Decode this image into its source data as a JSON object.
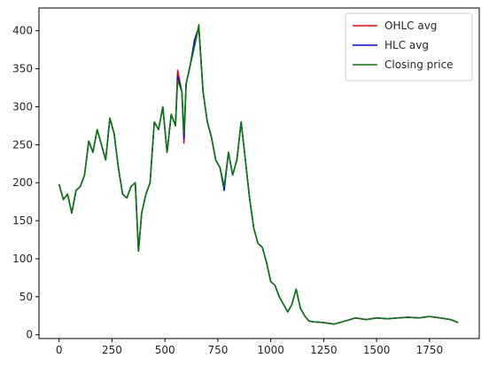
{
  "chart_data": {
    "type": "line",
    "title": "",
    "xlabel": "",
    "ylabel": "",
    "xlim": [
      -95,
      1985
    ],
    "ylim": [
      -5,
      430
    ],
    "xticks": [
      0,
      250,
      500,
      750,
      1000,
      1250,
      1500,
      1750
    ],
    "yticks": [
      0,
      50,
      100,
      150,
      200,
      250,
      300,
      350,
      400
    ],
    "grid": false,
    "legend": {
      "position": "top-right"
    },
    "series": [
      {
        "name": "OHLC avg",
        "color": "#ff0000",
        "x": [
          0,
          20,
          40,
          60,
          80,
          100,
          120,
          140,
          160,
          180,
          200,
          220,
          240,
          260,
          280,
          300,
          320,
          340,
          360,
          375,
          390,
          410,
          430,
          450,
          470,
          490,
          510,
          530,
          550,
          560,
          580,
          590,
          600,
          620,
          640,
          660,
          680,
          700,
          720,
          740,
          760,
          780,
          800,
          820,
          840,
          860,
          880,
          900,
          920,
          940,
          960,
          980,
          1000,
          1020,
          1040,
          1060,
          1080,
          1100,
          1120,
          1140,
          1160,
          1180,
          1200,
          1250,
          1300,
          1350,
          1400,
          1450,
          1500,
          1550,
          1600,
          1650,
          1700,
          1750,
          1800,
          1850,
          1885
        ],
        "y": [
          198,
          178,
          185,
          160,
          190,
          195,
          210,
          255,
          240,
          270,
          250,
          230,
          285,
          265,
          220,
          185,
          180,
          195,
          200,
          110,
          160,
          185,
          200,
          280,
          270,
          300,
          240,
          290,
          275,
          348,
          320,
          252,
          330,
          355,
          380,
          405,
          320,
          280,
          260,
          230,
          220,
          195,
          240,
          210,
          230,
          280,
          230,
          180,
          140,
          120,
          115,
          95,
          70,
          65,
          50,
          40,
          30,
          40,
          60,
          35,
          25,
          18,
          17,
          16,
          14,
          18,
          22,
          20,
          22,
          21,
          22,
          23,
          22,
          24,
          22,
          20,
          16
        ]
      },
      {
        "name": "HLC avg",
        "color": "#0000ff",
        "x": [
          0,
          20,
          40,
          60,
          80,
          100,
          120,
          140,
          160,
          180,
          200,
          220,
          240,
          260,
          280,
          300,
          320,
          340,
          360,
          375,
          390,
          410,
          430,
          450,
          470,
          490,
          510,
          530,
          550,
          560,
          580,
          590,
          600,
          620,
          640,
          660,
          680,
          700,
          720,
          740,
          760,
          780,
          800,
          820,
          840,
          860,
          880,
          900,
          920,
          940,
          960,
          980,
          1000,
          1020,
          1040,
          1060,
          1080,
          1100,
          1120,
          1140,
          1160,
          1180,
          1200,
          1250,
          1300,
          1350,
          1400,
          1450,
          1500,
          1550,
          1600,
          1650,
          1700,
          1750,
          1800,
          1850,
          1885
        ],
        "y": [
          198,
          178,
          185,
          160,
          190,
          195,
          210,
          255,
          240,
          270,
          250,
          230,
          285,
          265,
          220,
          185,
          180,
          195,
          200,
          110,
          160,
          185,
          200,
          280,
          270,
          300,
          240,
          290,
          275,
          340,
          320,
          258,
          330,
          355,
          388,
          405,
          320,
          280,
          260,
          230,
          220,
          190,
          240,
          210,
          230,
          280,
          230,
          180,
          140,
          120,
          115,
          95,
          70,
          65,
          50,
          40,
          30,
          40,
          60,
          35,
          25,
          18,
          17,
          16,
          14,
          18,
          22,
          20,
          22,
          21,
          22,
          23,
          22,
          24,
          22,
          20,
          16
        ]
      },
      {
        "name": "Closing price",
        "color": "#008000",
        "x": [
          0,
          20,
          40,
          60,
          80,
          100,
          120,
          140,
          160,
          180,
          200,
          220,
          240,
          260,
          280,
          300,
          320,
          340,
          360,
          375,
          390,
          410,
          430,
          450,
          470,
          490,
          510,
          530,
          550,
          560,
          580,
          590,
          600,
          620,
          640,
          660,
          680,
          700,
          720,
          740,
          760,
          780,
          800,
          820,
          840,
          860,
          880,
          900,
          920,
          940,
          960,
          980,
          1000,
          1020,
          1040,
          1060,
          1080,
          1100,
          1120,
          1140,
          1160,
          1180,
          1200,
          1250,
          1300,
          1350,
          1400,
          1450,
          1500,
          1550,
          1600,
          1650,
          1700,
          1750,
          1800,
          1850,
          1885
        ],
        "y": [
          198,
          178,
          185,
          160,
          190,
          195,
          210,
          255,
          240,
          270,
          250,
          230,
          285,
          265,
          220,
          185,
          180,
          195,
          200,
          110,
          160,
          185,
          200,
          280,
          270,
          300,
          240,
          290,
          275,
          335,
          320,
          265,
          330,
          355,
          380,
          408,
          320,
          280,
          260,
          230,
          220,
          195,
          240,
          210,
          230,
          280,
          230,
          180,
          140,
          120,
          115,
          95,
          70,
          65,
          50,
          40,
          30,
          40,
          60,
          35,
          25,
          18,
          17,
          16,
          14,
          18,
          22,
          20,
          22,
          21,
          22,
          23,
          22,
          24,
          22,
          20,
          16
        ]
      }
    ]
  }
}
